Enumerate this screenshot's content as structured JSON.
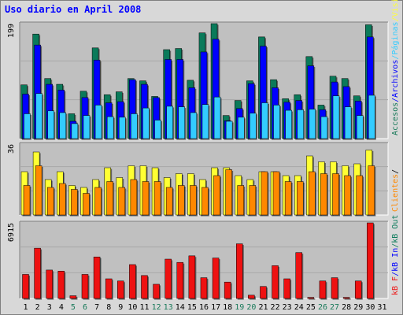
{
  "title": "Uso diario en April 2008",
  "colors": {
    "page_bg": "#d8d8d8",
    "panel_bg": "#c0c0c0",
    "visits": "#0a7a5a",
    "pages": "#0000ff",
    "hits": "#33ccff",
    "sites": "#ffff33",
    "kb_in": "#f8a020",
    "kb_out": "#ff8800",
    "kb_f": "#ee1111",
    "axis_text": "#000000",
    "weekend_text": "#1a7a5a"
  },
  "chart_data": [
    {
      "type": "bar",
      "panel": "top",
      "ytick_label": "199",
      "ylim": [
        0,
        199
      ],
      "categories": [
        "1",
        "2",
        "3",
        "4",
        "5",
        "6",
        "7",
        "8",
        "9",
        "10",
        "11",
        "12",
        "13",
        "14",
        "15",
        "16",
        "17",
        "18",
        "19",
        "20",
        "21",
        "22",
        "23",
        "24",
        "25",
        "26",
        "27",
        "28",
        "29",
        "30",
        "31"
      ],
      "legend_right": [
        {
          "text": "Accesos",
          "color": "#1a7a5a"
        },
        {
          "text": "Archivos",
          "color": "#0000ff"
        },
        {
          "text": "Páginas",
          "color": "#33ccff"
        },
        {
          "text": "Visitas",
          "color": "#ffff33"
        }
      ],
      "series": [
        {
          "name": "Accesos",
          "color": "#0a7a5a",
          "values": [
            93,
            181,
            104,
            94,
            43,
            82,
            157,
            76,
            81,
            104,
            100,
            73,
            154,
            156,
            101,
            183,
            199,
            40,
            66,
            100,
            176,
            102,
            69,
            76,
            142,
            58,
            108,
            104,
            74,
            197,
            0
          ]
        },
        {
          "name": "Archivos",
          "color": "#0000ff",
          "values": [
            77,
            162,
            94,
            84,
            30,
            71,
            136,
            62,
            64,
            102,
            94,
            71,
            137,
            137,
            88,
            150,
            172,
            31,
            52,
            95,
            160,
            88,
            63,
            66,
            126,
            50,
            98,
            90,
            65,
            176,
            0
          ]
        },
        {
          "name": "Páginas",
          "color": "#33ccff",
          "values": [
            43,
            78,
            48,
            45,
            26,
            40,
            58,
            38,
            37,
            43,
            53,
            32,
            56,
            55,
            45,
            59,
            72,
            30,
            37,
            44,
            62,
            58,
            49,
            50,
            51,
            38,
            74,
            55,
            40,
            75,
            0
          ]
        }
      ]
    },
    {
      "type": "bar",
      "panel": "middle",
      "ytick_label": "36",
      "ylim": [
        0,
        36
      ],
      "legend_right": [
        {
          "text": "Clientes",
          "color": "#ff8800"
        },
        {
          "text": "/",
          "color": "#000000"
        }
      ],
      "series": [
        {
          "name": "Visitas",
          "color": "#ffff33",
          "values": [
            22,
            32,
            18,
            22,
            15,
            14,
            18,
            24,
            19,
            25,
            25,
            24,
            19,
            21,
            21,
            18,
            24,
            24,
            20,
            18,
            22,
            22,
            20,
            20,
            30,
            27,
            27,
            25,
            26,
            33,
            0
          ]
        },
        {
          "name": "Clientes",
          "color": "#ff8800",
          "values": [
            15,
            25,
            14,
            16,
            13,
            11,
            14,
            17,
            14,
            18,
            17,
            17,
            14,
            15,
            15,
            14,
            20,
            23,
            15,
            15,
            22,
            22,
            17,
            17,
            22,
            21,
            21,
            20,
            20,
            25,
            0
          ]
        }
      ]
    },
    {
      "type": "bar",
      "panel": "bottom",
      "ytick_label": "6915",
      "ylim": [
        0,
        6915
      ],
      "legend_right": [
        {
          "text": "kB F",
          "color": "#ee1111"
        },
        {
          "text": "kB In",
          "color": "#0000ff"
        },
        {
          "text": "kB Out",
          "color": "#0a7a5a"
        }
      ],
      "series": [
        {
          "name": "kB F",
          "color": "#ee1111",
          "values": [
            2200,
            4600,
            2600,
            2500,
            250,
            2200,
            3800,
            1800,
            1600,
            3100,
            2100,
            1300,
            3600,
            3300,
            3900,
            1900,
            3700,
            1500,
            5000,
            300,
            1100,
            3000,
            1800,
            4200,
            100,
            1600,
            1900,
            100,
            1600,
            6915,
            0
          ]
        }
      ],
      "xtick_colors": [
        "#000000",
        "#000000",
        "#000000",
        "#000000",
        "#1a7a5a",
        "#1a7a5a",
        "#000000",
        "#000000",
        "#000000",
        "#000000",
        "#000000",
        "#1a7a5a",
        "#1a7a5a",
        "#000000",
        "#000000",
        "#000000",
        "#000000",
        "#000000",
        "#1a7a5a",
        "#1a7a5a",
        "#000000",
        "#000000",
        "#000000",
        "#000000",
        "#000000",
        "#1a7a5a",
        "#1a7a5a",
        "#000000",
        "#000000",
        "#000000",
        "#000000"
      ]
    }
  ]
}
